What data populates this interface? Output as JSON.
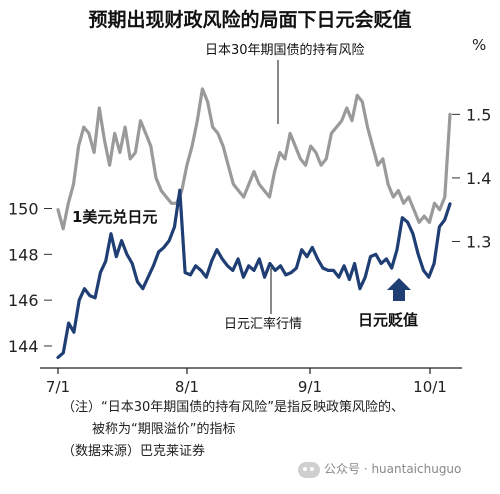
{
  "chart_data": {
    "type": "line",
    "title": "预期出现财政风险的局面下日元会贬值",
    "x_tick_labels": [
      "7/1",
      "8/1",
      "9/1",
      "10/1"
    ],
    "left_axis": {
      "ticks": [
        "144",
        "146",
        "148",
        "150"
      ],
      "range": [
        143.3,
        151.2
      ]
    },
    "right_axis": {
      "ticks": [
        "1.3",
        "1.4",
        "1.5"
      ],
      "unit": "%",
      "range": [
        1.263,
        1.617
      ]
    },
    "series": [
      {
        "name": "日本30年期国债的持有风险",
        "axis": "right",
        "color": "#9a9a9a",
        "values": [
          1.35,
          1.32,
          1.36,
          1.39,
          1.45,
          1.48,
          1.47,
          1.44,
          1.51,
          1.46,
          1.42,
          1.47,
          1.44,
          1.48,
          1.43,
          1.44,
          1.49,
          1.47,
          1.45,
          1.4,
          1.38,
          1.37,
          1.36,
          1.36,
          1.38,
          1.42,
          1.45,
          1.49,
          1.54,
          1.52,
          1.48,
          1.47,
          1.45,
          1.42,
          1.39,
          1.38,
          1.37,
          1.39,
          1.41,
          1.39,
          1.38,
          1.37,
          1.41,
          1.44,
          1.43,
          1.47,
          1.45,
          1.43,
          1.42,
          1.45,
          1.44,
          1.42,
          1.43,
          1.47,
          1.48,
          1.49,
          1.51,
          1.49,
          1.53,
          1.52,
          1.48,
          1.45,
          1.42,
          1.43,
          1.39,
          1.37,
          1.38,
          1.36,
          1.37,
          1.35,
          1.33,
          1.34,
          1.33,
          1.36,
          1.35,
          1.37,
          1.5
        ]
      },
      {
        "name": "日元汇率行情",
        "axis": "left",
        "color": "#1f3e74",
        "values": [
          143.5,
          143.7,
          145.0,
          144.6,
          146.0,
          146.5,
          146.2,
          146.1,
          147.2,
          147.7,
          148.9,
          147.9,
          148.6,
          148.0,
          147.6,
          146.8,
          146.5,
          147.0,
          147.5,
          148.1,
          148.3,
          148.6,
          149.2,
          150.8,
          147.2,
          147.1,
          147.5,
          147.3,
          147.0,
          147.7,
          148.2,
          147.8,
          147.5,
          147.3,
          147.8,
          147.0,
          147.5,
          147.3,
          147.8,
          147.0,
          147.6,
          147.3,
          147.5,
          147.1,
          147.2,
          147.4,
          148.2,
          147.9,
          148.3,
          147.8,
          147.4,
          147.3,
          147.3,
          147.0,
          147.5,
          146.9,
          147.6,
          146.5,
          147.0,
          147.9,
          148.0,
          147.6,
          147.8,
          147.4,
          148.2,
          149.6,
          149.4,
          148.9,
          148.0,
          147.3,
          147.0,
          147.6,
          149.2,
          149.5,
          150.2
        ]
      }
    ],
    "annotations": [
      {
        "text": "1美元兑日元",
        "series": 1
      },
      {
        "text": "日本30年期国债的持有风险",
        "series": 0
      },
      {
        "text": "日元汇率行情",
        "series": 1
      },
      {
        "text": "日元贬值"
      }
    ],
    "grid": false
  },
  "notes": {
    "line1": "（注）“日本30年期国债的持有风险”是指反映政策风险的、",
    "line2": "被称为“期限溢价”的指标",
    "source": "（数据来源）巴克莱证券"
  },
  "watermark": {
    "text": "公众号 · huantaichuguo",
    "icon": "wechat-icon"
  }
}
